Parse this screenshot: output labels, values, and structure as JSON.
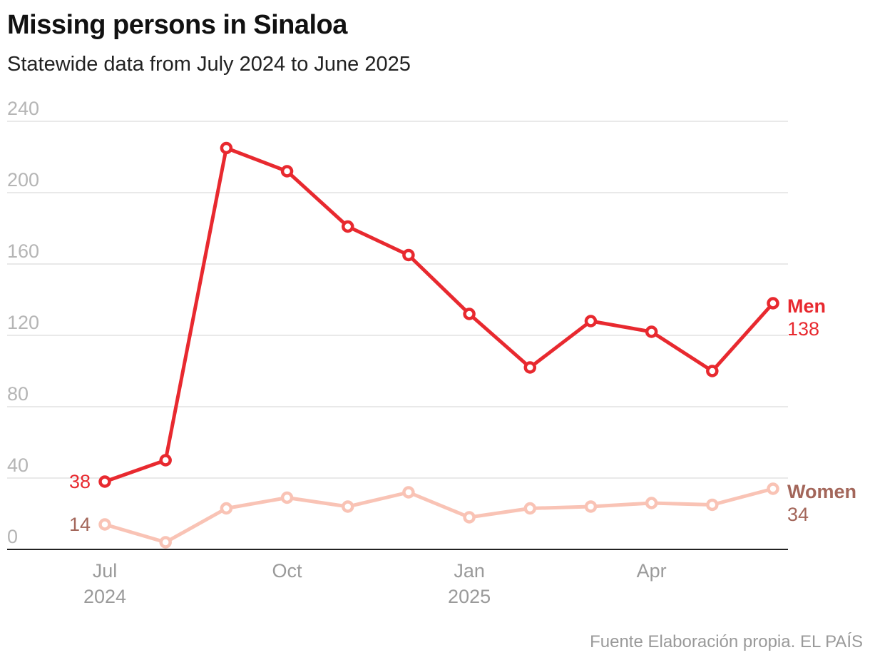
{
  "title": "Missing persons in Sinaloa",
  "subtitle": "Statewide data from July 2024 to June 2025",
  "source": "Fuente Elaboración propia. EL PAÍS",
  "colors": {
    "men": "#e8292f",
    "women": "#f9c3b5",
    "women_label": "#a3665a",
    "grid": "#e2e2e2",
    "axis": "#222222"
  },
  "chart_data": {
    "type": "line",
    "title": "Missing persons in Sinaloa",
    "subtitle": "Statewide data from July 2024 to June 2025",
    "x": [
      "2024-07",
      "2024-08",
      "2024-09",
      "2024-10",
      "2024-11",
      "2024-12",
      "2025-01",
      "2025-02",
      "2025-03",
      "2025-04",
      "2025-05",
      "2025-06"
    ],
    "x_ticks": [
      {
        "month": "2024-07",
        "label": "Jul",
        "sublabel": "2024"
      },
      {
        "month": "2024-10",
        "label": "Oct",
        "sublabel": ""
      },
      {
        "month": "2025-01",
        "label": "Jan",
        "sublabel": "2025"
      },
      {
        "month": "2025-04",
        "label": "Apr",
        "sublabel": ""
      }
    ],
    "ylim": [
      0,
      240
    ],
    "y_ticks": [
      0,
      40,
      80,
      120,
      160,
      200,
      240
    ],
    "grid": true,
    "series": [
      {
        "name": "Men",
        "values": [
          38,
          50,
          225,
          212,
          181,
          165,
          132,
          102,
          128,
          122,
          100,
          138
        ],
        "start_label": "38",
        "end_label": "138"
      },
      {
        "name": "Women",
        "values": [
          14,
          4,
          23,
          29,
          24,
          32,
          18,
          23,
          24,
          26,
          25,
          34
        ],
        "start_label": "14",
        "end_label": "34"
      }
    ]
  }
}
